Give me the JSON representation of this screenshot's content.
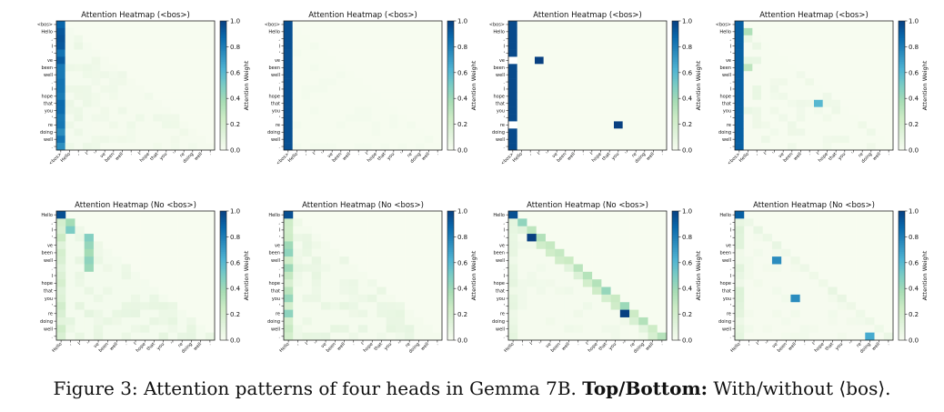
{
  "caption": {
    "prefix": "Figure 3: Attention patterns of four heads in Gemma 7B.",
    "bold": "Top/Bottom:",
    "suffix": "With/without ⟨bos⟩."
  },
  "chart_data": {
    "type": "heatmap",
    "colormap": "GnBu",
    "colorbar": {
      "label": "Attention Weight",
      "ticks": [
        0.0,
        0.2,
        0.4,
        0.6,
        0.8,
        1.0
      ],
      "range": [
        0,
        1
      ]
    },
    "tokens_bos": [
      "<bos>",
      "Hello",
      ",",
      "I",
      "'",
      "ve",
      "been",
      "well",
      ".",
      "I",
      "hope",
      "that",
      "you",
      "'",
      "re",
      "doing",
      "well",
      "."
    ],
    "tokens_nobos": [
      "Hello",
      ",",
      "I",
      "'",
      "ve",
      "been",
      "well",
      ".",
      "I",
      "hope",
      "that",
      "you",
      "'",
      "re",
      "doing",
      "well",
      "."
    ],
    "panels": [
      {
        "title": "Attention Heatmap (<bos>)",
        "row": 0,
        "pattern": "bos_sink_gradient"
      },
      {
        "title": "Attention Heatmap (<bos>)",
        "row": 0,
        "pattern": "bos_sink"
      },
      {
        "title": "Attention Heatmap (<bos>)",
        "row": 0,
        "pattern": "bos_sink_with_spikes",
        "spikes": [
          [
            5,
            3,
            1.0
          ],
          [
            14,
            12,
            1.0
          ]
        ]
      },
      {
        "title": "Attention Heatmap (<bos>)",
        "row": 0,
        "pattern": "bos_sink_sparse",
        "spikes": [
          [
            1,
            1,
            0.35
          ],
          [
            6,
            1,
            0.3
          ],
          [
            11,
            9,
            0.6
          ]
        ]
      },
      {
        "title": "Attention Heatmap (No <bos>)",
        "row": 1,
        "pattern": "diffuse_lower_triangle"
      },
      {
        "title": "Attention Heatmap (No <bos>)",
        "row": 1,
        "pattern": "first_column_lower_triangle"
      },
      {
        "title": "Attention Heatmap (No <bos>)",
        "row": 1,
        "pattern": "diagonal",
        "spikes": [
          [
            3,
            2,
            1.0
          ],
          [
            13,
            12,
            1.0
          ]
        ]
      },
      {
        "title": "Attention Heatmap (No <bos>)",
        "row": 1,
        "pattern": "sparse_diagonal",
        "spikes": [
          [
            6,
            4,
            0.75
          ],
          [
            11,
            6,
            0.75
          ],
          [
            16,
            14,
            0.65
          ]
        ]
      }
    ]
  }
}
